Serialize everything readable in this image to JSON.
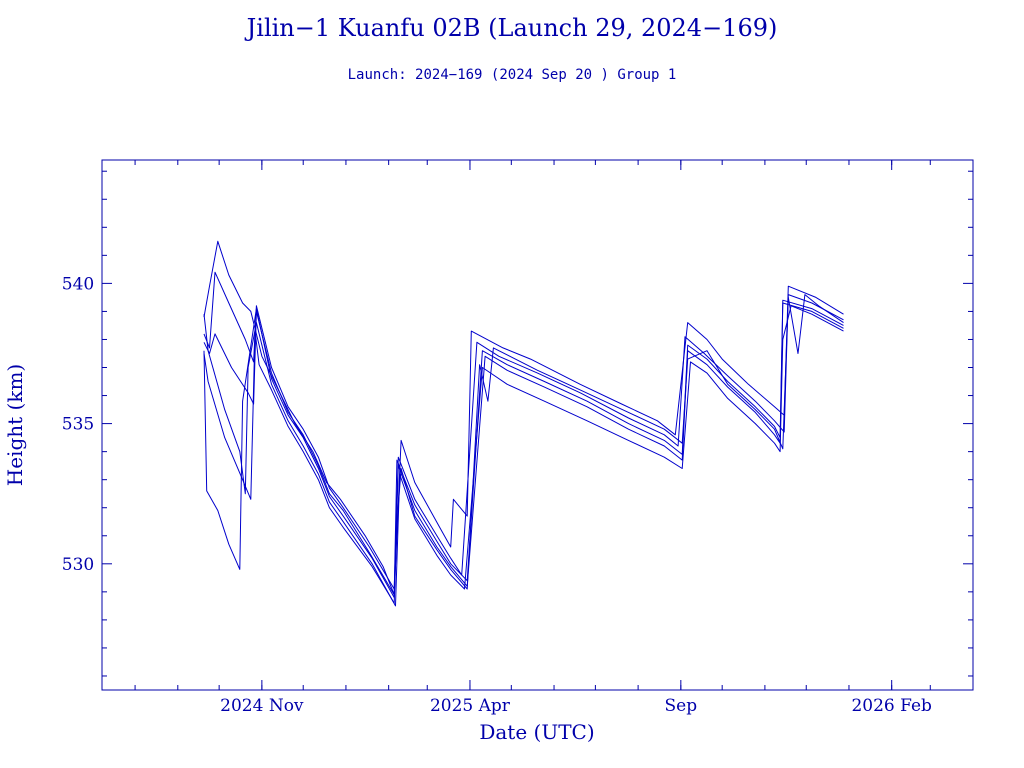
{
  "chart_data": {
    "type": "line",
    "title": "Jilin−1 Kuanfu 02B (Launch 29, 2024−169)",
    "subtitle": "Launch: 2024−169  (2024 Sep 20 )  Group 1",
    "xlabel": "Date (UTC)",
    "ylabel": "Height (km)",
    "xlim": [
      "2024-07-08",
      "2026-04-01"
    ],
    "ylim": [
      525.5,
      544.4
    ],
    "x_ticks": [
      {
        "date": "2024-11-01",
        "label": "2024 Nov"
      },
      {
        "date": "2025-04-01",
        "label": "2025 Apr"
      },
      {
        "date": "2025-09-01",
        "label": "Sep"
      },
      {
        "date": "2026-02-01",
        "label": "2026 Feb"
      }
    ],
    "y_ticks": [
      530,
      535,
      540
    ],
    "grid": false,
    "line_color": "#0000cc",
    "series": [
      {
        "values": [
          [
            "2024-09-20",
            538.8
          ],
          [
            "2024-09-24",
            539.9
          ],
          [
            "2024-09-30",
            541.5
          ],
          [
            "2024-10-08",
            540.3
          ],
          [
            "2024-10-18",
            539.3
          ],
          [
            "2024-10-24",
            539.0
          ],
          [
            "2024-11-01",
            537.4
          ],
          [
            "2024-11-12",
            536.3
          ],
          [
            "2024-11-25",
            535.0
          ],
          [
            "2024-12-08",
            534.0
          ],
          [
            "2024-12-18",
            532.9
          ],
          [
            "2024-12-28",
            532.3
          ],
          [
            "2025-01-15",
            531.0
          ],
          [
            "2025-01-28",
            529.9
          ],
          [
            "2025-02-05",
            528.9
          ],
          [
            "2025-02-10",
            534.4
          ],
          [
            "2025-02-20",
            532.9
          ],
          [
            "2025-03-10",
            531.3
          ],
          [
            "2025-03-18",
            530.6
          ],
          [
            "2025-03-20",
            532.3
          ],
          [
            "2025-03-30",
            531.7
          ],
          [
            "2025-04-02",
            538.3
          ],
          [
            "2025-04-25",
            537.7
          ],
          [
            "2025-05-15",
            537.3
          ],
          [
            "2025-06-20",
            536.4
          ],
          [
            "2025-07-20",
            535.7
          ],
          [
            "2025-08-15",
            535.1
          ],
          [
            "2025-08-28",
            534.6
          ],
          [
            "2025-09-06",
            538.6
          ],
          [
            "2025-09-20",
            538.0
          ],
          [
            "2025-10-01",
            537.3
          ],
          [
            "2025-10-20",
            536.4
          ],
          [
            "2025-11-08",
            535.6
          ],
          [
            "2025-11-15",
            535.3
          ],
          [
            "2025-11-18",
            539.9
          ],
          [
            "2025-12-08",
            539.5
          ],
          [
            "2025-12-28",
            538.9
          ]
        ]
      },
      {
        "values": [
          [
            "2024-09-20",
            538.2
          ],
          [
            "2024-09-24",
            537.7
          ],
          [
            "2024-09-28",
            540.4
          ],
          [
            "2024-10-08",
            539.3
          ],
          [
            "2024-10-20",
            538.0
          ],
          [
            "2024-10-26",
            537.2
          ],
          [
            "2024-10-28",
            539.2
          ],
          [
            "2024-11-08",
            537.0
          ],
          [
            "2024-11-20",
            535.6
          ],
          [
            "2024-12-01",
            534.8
          ],
          [
            "2024-12-12",
            533.8
          ],
          [
            "2024-12-20",
            532.7
          ],
          [
            "2024-12-30",
            532.0
          ],
          [
            "2025-01-18",
            530.6
          ],
          [
            "2025-02-05",
            529.1
          ],
          [
            "2025-02-08",
            533.8
          ],
          [
            "2025-02-20",
            532.3
          ],
          [
            "2025-03-08",
            531.0
          ],
          [
            "2025-03-18",
            530.2
          ],
          [
            "2025-03-26",
            529.6
          ],
          [
            "2025-04-06",
            537.9
          ],
          [
            "2025-04-22",
            537.4
          ],
          [
            "2025-05-20",
            536.8
          ],
          [
            "2025-06-20",
            536.1
          ],
          [
            "2025-07-25",
            535.2
          ],
          [
            "2025-08-20",
            534.6
          ],
          [
            "2025-08-30",
            534.2
          ],
          [
            "2025-09-04",
            538.1
          ],
          [
            "2025-09-18",
            537.5
          ],
          [
            "2025-10-05",
            536.7
          ],
          [
            "2025-10-25",
            535.8
          ],
          [
            "2025-11-08",
            535.1
          ],
          [
            "2025-11-15",
            534.7
          ],
          [
            "2025-11-18",
            539.6
          ],
          [
            "2025-12-05",
            539.3
          ],
          [
            "2025-12-28",
            538.7
          ]
        ]
      },
      {
        "values": [
          [
            "2024-09-20",
            537.9
          ],
          [
            "2024-09-24",
            537.5
          ],
          [
            "2024-09-28",
            538.2
          ],
          [
            "2024-10-10",
            537.0
          ],
          [
            "2024-10-22",
            536.1
          ],
          [
            "2024-10-26",
            535.7
          ],
          [
            "2024-10-28",
            539.0
          ],
          [
            "2024-11-08",
            536.8
          ],
          [
            "2024-11-20",
            535.4
          ],
          [
            "2024-12-01",
            534.6
          ],
          [
            "2024-12-12",
            533.5
          ],
          [
            "2024-12-20",
            532.5
          ],
          [
            "2024-12-30",
            531.9
          ],
          [
            "2025-01-18",
            530.4
          ],
          [
            "2025-02-05",
            528.9
          ],
          [
            "2025-02-07",
            533.7
          ],
          [
            "2025-02-20",
            532.1
          ],
          [
            "2025-03-08",
            530.8
          ],
          [
            "2025-03-18",
            530.0
          ],
          [
            "2025-03-30",
            529.4
          ],
          [
            "2025-04-10",
            537.6
          ],
          [
            "2025-04-28",
            537.1
          ],
          [
            "2025-05-25",
            536.5
          ],
          [
            "2025-06-25",
            535.8
          ],
          [
            "2025-07-25",
            535.0
          ],
          [
            "2025-08-20",
            534.4
          ],
          [
            "2025-09-02",
            533.9
          ],
          [
            "2025-09-06",
            537.8
          ],
          [
            "2025-09-20",
            537.3
          ],
          [
            "2025-10-05",
            536.5
          ],
          [
            "2025-10-25",
            535.6
          ],
          [
            "2025-11-08",
            534.9
          ],
          [
            "2025-11-12",
            534.5
          ],
          [
            "2025-11-14",
            539.4
          ],
          [
            "2025-12-05",
            539.1
          ],
          [
            "2025-12-28",
            538.5
          ]
        ]
      },
      {
        "values": [
          [
            "2024-09-20",
            537.6
          ],
          [
            "2024-09-22",
            532.6
          ],
          [
            "2024-09-30",
            531.9
          ],
          [
            "2024-10-08",
            530.7
          ],
          [
            "2024-10-16",
            529.8
          ],
          [
            "2024-10-18",
            535.8
          ],
          [
            "2024-10-28",
            539.1
          ],
          [
            "2024-11-08",
            536.6
          ],
          [
            "2024-11-20",
            535.3
          ],
          [
            "2024-12-01",
            534.5
          ],
          [
            "2024-12-12",
            533.4
          ],
          [
            "2024-12-20",
            532.4
          ],
          [
            "2024-12-30",
            531.7
          ],
          [
            "2025-01-20",
            530.2
          ],
          [
            "2025-02-05",
            528.8
          ],
          [
            "2025-02-08",
            533.5
          ],
          [
            "2025-02-20",
            531.9
          ],
          [
            "2025-03-08",
            530.6
          ],
          [
            "2025-03-18",
            529.9
          ],
          [
            "2025-03-30",
            529.2
          ],
          [
            "2025-04-12",
            537.4
          ],
          [
            "2025-04-28",
            536.9
          ],
          [
            "2025-05-25",
            536.3
          ],
          [
            "2025-06-25",
            535.6
          ],
          [
            "2025-07-25",
            534.8
          ],
          [
            "2025-08-20",
            534.2
          ],
          [
            "2025-09-02",
            533.7
          ],
          [
            "2025-09-06",
            537.6
          ],
          [
            "2025-09-20",
            537.1
          ],
          [
            "2025-10-05",
            536.3
          ],
          [
            "2025-10-25",
            535.4
          ],
          [
            "2025-11-08",
            534.6
          ],
          [
            "2025-11-12",
            534.3
          ],
          [
            "2025-11-14",
            539.3
          ],
          [
            "2025-12-05",
            539.0
          ],
          [
            "2025-12-28",
            538.4
          ]
        ]
      },
      {
        "values": [
          [
            "2024-09-20",
            538.9
          ],
          [
            "2024-09-23",
            537.6
          ],
          [
            "2024-10-05",
            535.5
          ],
          [
            "2024-10-16",
            534.0
          ],
          [
            "2024-10-20",
            532.5
          ],
          [
            "2024-10-22",
            537.0
          ],
          [
            "2024-10-28",
            538.6
          ],
          [
            "2024-11-08",
            536.4
          ],
          [
            "2024-11-20",
            535.1
          ],
          [
            "2024-12-01",
            534.2
          ],
          [
            "2024-12-12",
            533.2
          ],
          [
            "2024-12-20",
            532.2
          ],
          [
            "2024-12-30",
            531.5
          ],
          [
            "2025-01-20",
            530.0
          ],
          [
            "2025-02-06",
            528.5
          ],
          [
            "2025-02-09",
            533.2
          ],
          [
            "2025-02-20",
            531.6
          ],
          [
            "2025-03-08",
            530.3
          ],
          [
            "2025-03-18",
            529.6
          ],
          [
            "2025-03-28",
            529.1
          ],
          [
            "2025-04-10",
            537.0
          ],
          [
            "2025-04-28",
            536.4
          ],
          [
            "2025-05-25",
            535.8
          ],
          [
            "2025-06-25",
            535.1
          ],
          [
            "2025-07-25",
            534.4
          ],
          [
            "2025-08-20",
            533.8
          ],
          [
            "2025-09-02",
            533.4
          ],
          [
            "2025-09-08",
            537.2
          ],
          [
            "2025-09-20",
            536.8
          ],
          [
            "2025-10-05",
            535.9
          ],
          [
            "2025-10-25",
            535.0
          ],
          [
            "2025-11-08",
            534.3
          ],
          [
            "2025-11-12",
            534.0
          ],
          [
            "2025-11-14",
            538.0
          ],
          [
            "2025-11-20",
            539.2
          ],
          [
            "2025-12-05",
            538.9
          ],
          [
            "2025-12-28",
            538.3
          ]
        ]
      },
      {
        "values": [
          [
            "2024-09-20",
            537.5
          ],
          [
            "2024-09-23",
            536.5
          ],
          [
            "2024-10-05",
            534.5
          ],
          [
            "2024-10-18",
            533.0
          ],
          [
            "2024-10-24",
            532.3
          ],
          [
            "2024-10-27",
            538.3
          ],
          [
            "2024-10-30",
            537.1
          ],
          [
            "2024-11-08",
            536.2
          ],
          [
            "2024-11-20",
            534.9
          ],
          [
            "2024-12-01",
            534.0
          ],
          [
            "2024-12-12",
            533.0
          ],
          [
            "2024-12-20",
            532.0
          ],
          [
            "2024-12-30",
            531.3
          ],
          [
            "2025-01-20",
            529.9
          ],
          [
            "2025-02-05",
            528.6
          ],
          [
            "2025-02-07",
            531.4
          ],
          [
            "2025-02-10",
            533.4
          ],
          [
            "2025-02-20",
            531.7
          ],
          [
            "2025-03-08",
            530.5
          ],
          [
            "2025-03-18",
            529.8
          ],
          [
            "2025-03-30",
            529.1
          ],
          [
            "2025-04-08",
            537.1
          ],
          [
            "2025-04-14",
            535.8
          ],
          [
            "2025-04-18",
            537.7
          ],
          [
            "2025-05-20",
            536.9
          ],
          [
            "2025-06-20",
            536.2
          ],
          [
            "2025-07-25",
            535.4
          ],
          [
            "2025-08-20",
            534.8
          ],
          [
            "2025-09-02",
            534.3
          ],
          [
            "2025-09-06",
            537.3
          ],
          [
            "2025-09-20",
            537.6
          ],
          [
            "2025-10-05",
            536.4
          ],
          [
            "2025-10-25",
            535.5
          ],
          [
            "2025-11-08",
            534.8
          ],
          [
            "2025-11-14",
            534.1
          ],
          [
            "2025-11-18",
            539.5
          ],
          [
            "2025-11-25",
            537.5
          ],
          [
            "2025-11-30",
            539.6
          ],
          [
            "2025-12-10",
            539.2
          ],
          [
            "2025-12-28",
            538.6
          ]
        ]
      }
    ]
  }
}
